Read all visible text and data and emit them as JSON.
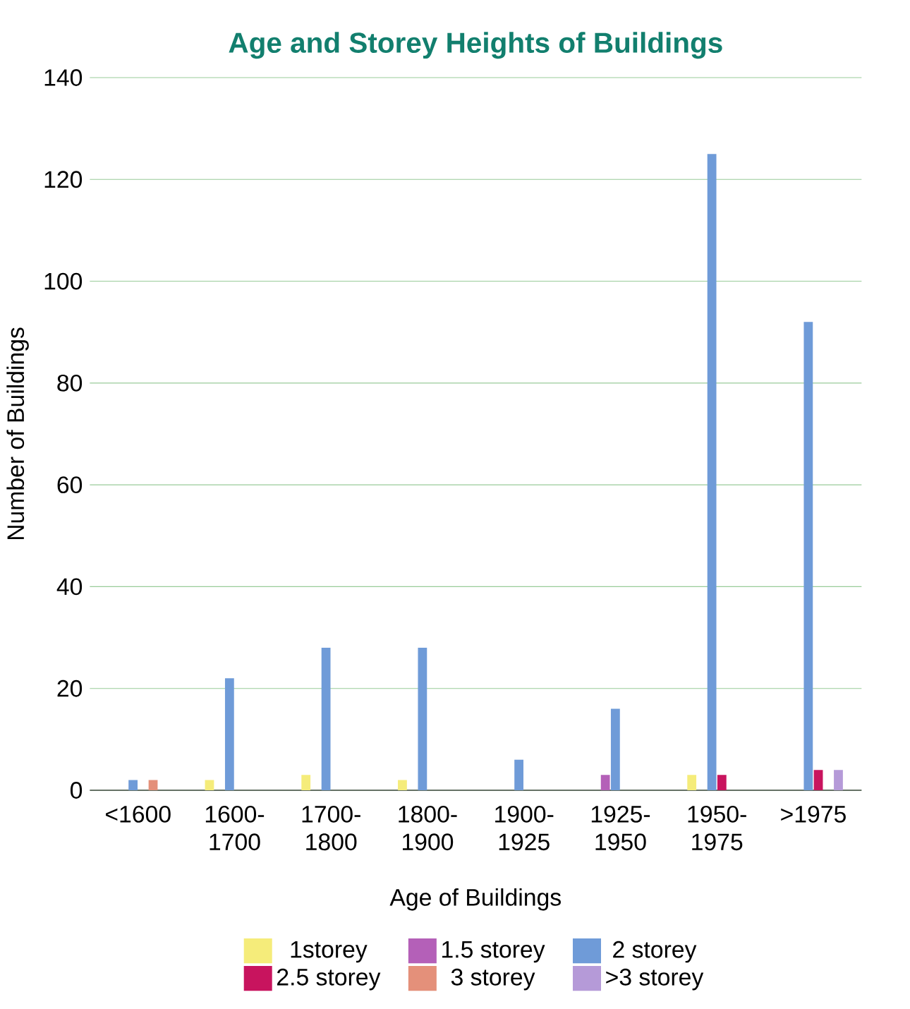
{
  "chart_data": {
    "type": "bar",
    "title": "Age and Storey Heights of Buildings",
    "xlabel": "Age of Buildings",
    "ylabel": "Number of Buildings",
    "categories": [
      "<1600",
      "1600-1700",
      "1700-1800",
      "1800-1900",
      "1900-1925",
      "1925-1950",
      "1950-1975",
      ">1975"
    ],
    "series": [
      {
        "name": "1storey",
        "color": "#f5ec7a",
        "values": [
          null,
          2,
          3,
          2,
          null,
          null,
          3,
          null
        ]
      },
      {
        "name": "1.5 storey",
        "color": "#b460b8",
        "values": [
          null,
          null,
          null,
          null,
          null,
          3,
          null,
          null
        ]
      },
      {
        "name": "2 storey",
        "color": "#6f9bd8",
        "values": [
          2,
          22,
          28,
          28,
          6,
          16,
          125,
          92
        ]
      },
      {
        "name": "2.5 storey",
        "color": "#c8145e",
        "values": [
          null,
          null,
          null,
          null,
          null,
          null,
          3,
          4
        ]
      },
      {
        "name": "3 storey",
        "color": "#e4907a",
        "values": [
          2,
          null,
          null,
          null,
          null,
          null,
          null,
          null
        ]
      },
      {
        "name": ">3 storey",
        "color": "#b59ad8",
        "values": [
          null,
          null,
          null,
          null,
          null,
          null,
          null,
          4
        ]
      }
    ],
    "ylim": [
      0,
      140
    ],
    "yticks": [
      0,
      20,
      40,
      60,
      80,
      100,
      120,
      140
    ],
    "grid": "y",
    "legend": "bottom"
  }
}
